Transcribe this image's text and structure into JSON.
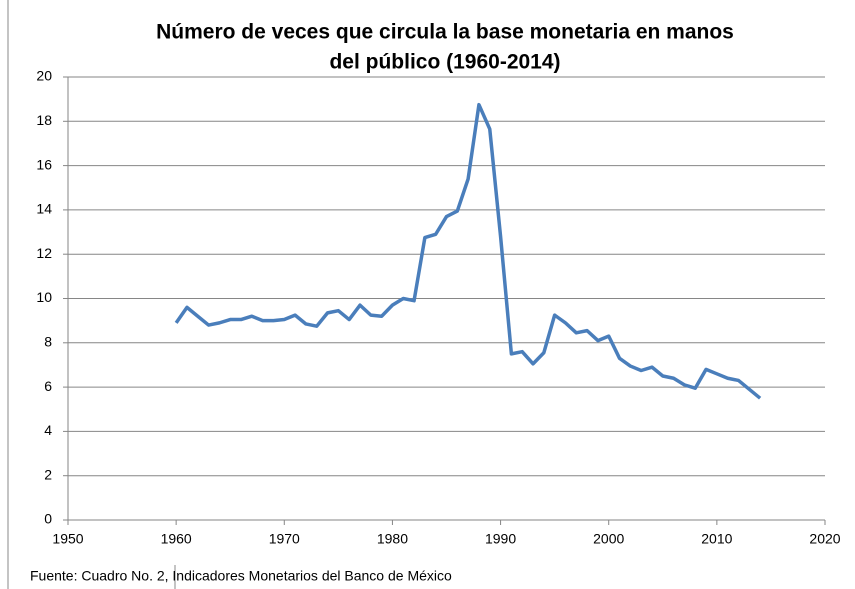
{
  "chart_data": {
    "type": "line",
    "title": [
      "Número de veces que circula la base monetaria en manos",
      "del público (1960-2014)"
    ],
    "source": "Fuente: Cuadro No. 2, Indicadores Monetarios del Banco de México",
    "x": [
      1960,
      1961,
      1962,
      1963,
      1964,
      1965,
      1966,
      1967,
      1968,
      1969,
      1970,
      1971,
      1972,
      1973,
      1974,
      1975,
      1976,
      1977,
      1978,
      1979,
      1980,
      1981,
      1982,
      1983,
      1984,
      1985,
      1986,
      1987,
      1988,
      1989,
      1990,
      1991,
      1992,
      1993,
      1994,
      1995,
      1996,
      1997,
      1998,
      1999,
      2000,
      2001,
      2002,
      2003,
      2004,
      2005,
      2006,
      2007,
      2008,
      2009,
      2010,
      2011,
      2012,
      2013,
      2014
    ],
    "values": [
      8.9,
      9.6,
      9.2,
      8.8,
      8.9,
      9.05,
      9.05,
      9.2,
      9.0,
      9.0,
      9.05,
      9.25,
      8.85,
      8.75,
      9.35,
      9.45,
      9.05,
      9.7,
      9.25,
      9.2,
      9.7,
      10.0,
      9.9,
      12.75,
      12.9,
      13.7,
      13.95,
      15.4,
      18.75,
      17.65,
      12.8,
      7.5,
      7.6,
      7.05,
      7.55,
      9.25,
      8.9,
      8.45,
      8.55,
      8.1,
      8.3,
      7.3,
      6.95,
      6.75,
      6.9,
      6.5,
      6.4,
      6.1,
      5.95,
      6.8,
      6.6,
      6.4,
      6.3,
      5.9,
      5.5
    ],
    "color": "#4a7ebb",
    "xlim": [
      1950,
      2020
    ],
    "xticks": [
      1950,
      1960,
      1970,
      1980,
      1990,
      2000,
      2010,
      2020
    ],
    "ylim": [
      0,
      20
    ],
    "yticks": [
      0,
      2,
      4,
      6,
      8,
      10,
      12,
      14,
      16,
      18,
      20
    ],
    "grid": true
  }
}
